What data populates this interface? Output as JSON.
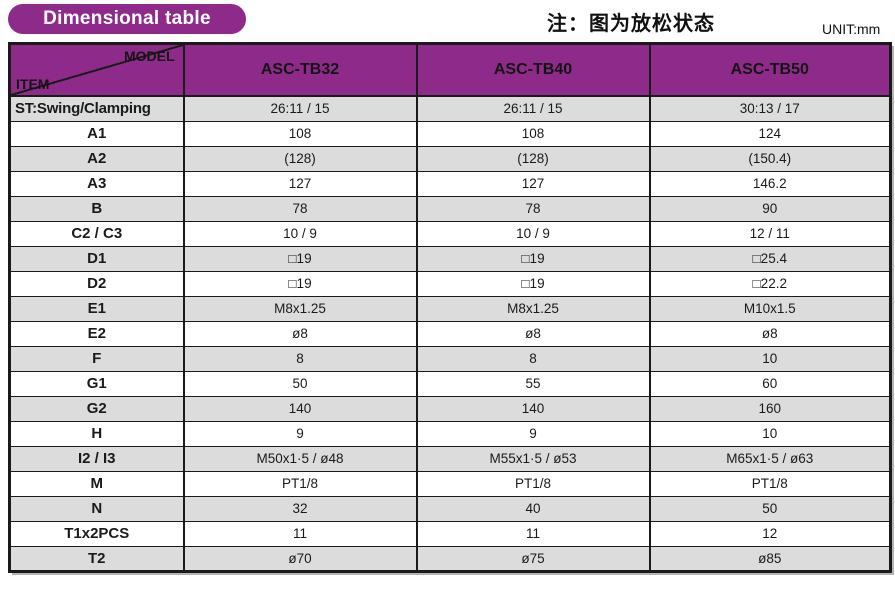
{
  "header": {
    "badge": "Dimensional table",
    "note": "注：图为放松状态",
    "unit": "UNIT:mm"
  },
  "table": {
    "corner": {
      "model": "MODEL",
      "item": "ITEM"
    },
    "columns": [
      "ASC-TB32",
      "ASC-TB40",
      "ASC-TB50"
    ],
    "rows": [
      {
        "item": "ST:Swing/Clamping",
        "values": [
          "26:11 / 15",
          "26:11 / 15",
          "30:13 / 17"
        ]
      },
      {
        "item": "A1",
        "values": [
          "108",
          "108",
          "124"
        ]
      },
      {
        "item": "A2",
        "values": [
          "(128)",
          "(128)",
          "(150.4)"
        ]
      },
      {
        "item": "A3",
        "values": [
          "127",
          "127",
          "146.2"
        ]
      },
      {
        "item": "B",
        "values": [
          "78",
          "78",
          "90"
        ]
      },
      {
        "item": "C2 / C3",
        "values": [
          "10 / 9",
          "10 / 9",
          "12 / 11"
        ]
      },
      {
        "item": "D1",
        "values": [
          "□19",
          "□19",
          "□25.4"
        ]
      },
      {
        "item": "D2",
        "values": [
          "□19",
          "□19",
          "□22.2"
        ]
      },
      {
        "item": "E1",
        "values": [
          "M8x1.25",
          "M8x1.25",
          "M10x1.5"
        ]
      },
      {
        "item": "E2",
        "values": [
          "ø8",
          "ø8",
          "ø8"
        ]
      },
      {
        "item": "F",
        "values": [
          "8",
          "8",
          "10"
        ]
      },
      {
        "item": "G1",
        "values": [
          "50",
          "55",
          "60"
        ]
      },
      {
        "item": "G2",
        "values": [
          "140",
          "140",
          "160"
        ]
      },
      {
        "item": "H",
        "values": [
          "9",
          "9",
          "10"
        ]
      },
      {
        "item": "I2 / I3",
        "values": [
          "M50x1·5 / ø48",
          "M55x1·5 / ø53",
          "M65x1·5 / ø63"
        ]
      },
      {
        "item": "M",
        "values": [
          "PT1/8",
          "PT1/8",
          "PT1/8"
        ]
      },
      {
        "item": "N",
        "values": [
          "32",
          "40",
          "50"
        ]
      },
      {
        "item": "T1x2PCS",
        "values": [
          "11",
          "11",
          "12"
        ]
      },
      {
        "item": "T2",
        "values": [
          "ø70",
          "ø75",
          "ø85"
        ]
      }
    ]
  },
  "colors": {
    "accent_purple": "#8e2b8a",
    "row_alt_gray": "#dcdcdc",
    "border_black": "#1a1a1a",
    "badge_text": "#ffffff"
  }
}
